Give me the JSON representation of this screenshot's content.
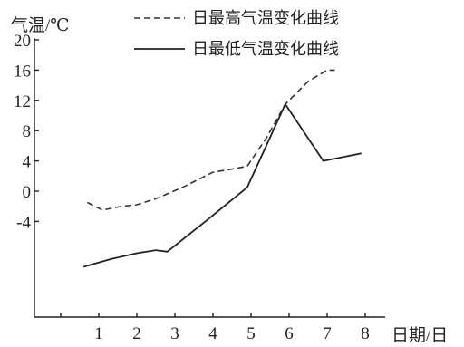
{
  "chart_data": {
    "type": "line",
    "ylabel": "气温/℃",
    "xlabel": "日期/日",
    "x": [
      1,
      2,
      3,
      4,
      5,
      6,
      7,
      8
    ],
    "x_tick_labels": [
      "1",
      "2",
      "3",
      "4",
      "5",
      "6",
      "7",
      "8"
    ],
    "y_tick_labels": [
      "20",
      "16",
      "12",
      "8",
      "4",
      "0",
      "-4"
    ],
    "ylim": [
      -12,
      20
    ],
    "legend_position": "top-right",
    "series": [
      {
        "name": "日最高气温变化曲线",
        "style": "dashed",
        "points": [
          {
            "x": 0.7,
            "y": -1.5
          },
          {
            "x": 1.1,
            "y": -2.5
          },
          {
            "x": 1.6,
            "y": -2.0
          },
          {
            "x": 2.0,
            "y": -1.8
          },
          {
            "x": 2.5,
            "y": -1.0
          },
          {
            "x": 3.2,
            "y": 0.5
          },
          {
            "x": 4.0,
            "y": 2.5
          },
          {
            "x": 4.6,
            "y": 3.0
          },
          {
            "x": 4.9,
            "y": 3.3
          },
          {
            "x": 5.4,
            "y": 7.0
          },
          {
            "x": 5.9,
            "y": 11.5
          },
          {
            "x": 6.5,
            "y": 14.5
          },
          {
            "x": 7.0,
            "y": 16.0
          },
          {
            "x": 7.2,
            "y": 16.0
          }
        ]
      },
      {
        "name": "日最低气温变化曲线",
        "style": "solid",
        "points": [
          {
            "x": 0.6,
            "y": -10.0
          },
          {
            "x": 1.3,
            "y": -9.0
          },
          {
            "x": 2.0,
            "y": -8.2
          },
          {
            "x": 2.5,
            "y": -7.8
          },
          {
            "x": 2.8,
            "y": -8.0
          },
          {
            "x": 3.8,
            "y": -4.0
          },
          {
            "x": 4.9,
            "y": 0.5
          },
          {
            "x": 5.9,
            "y": 11.5
          },
          {
            "x": 6.9,
            "y": 4.0
          },
          {
            "x": 7.9,
            "y": 5.0
          }
        ]
      }
    ]
  }
}
